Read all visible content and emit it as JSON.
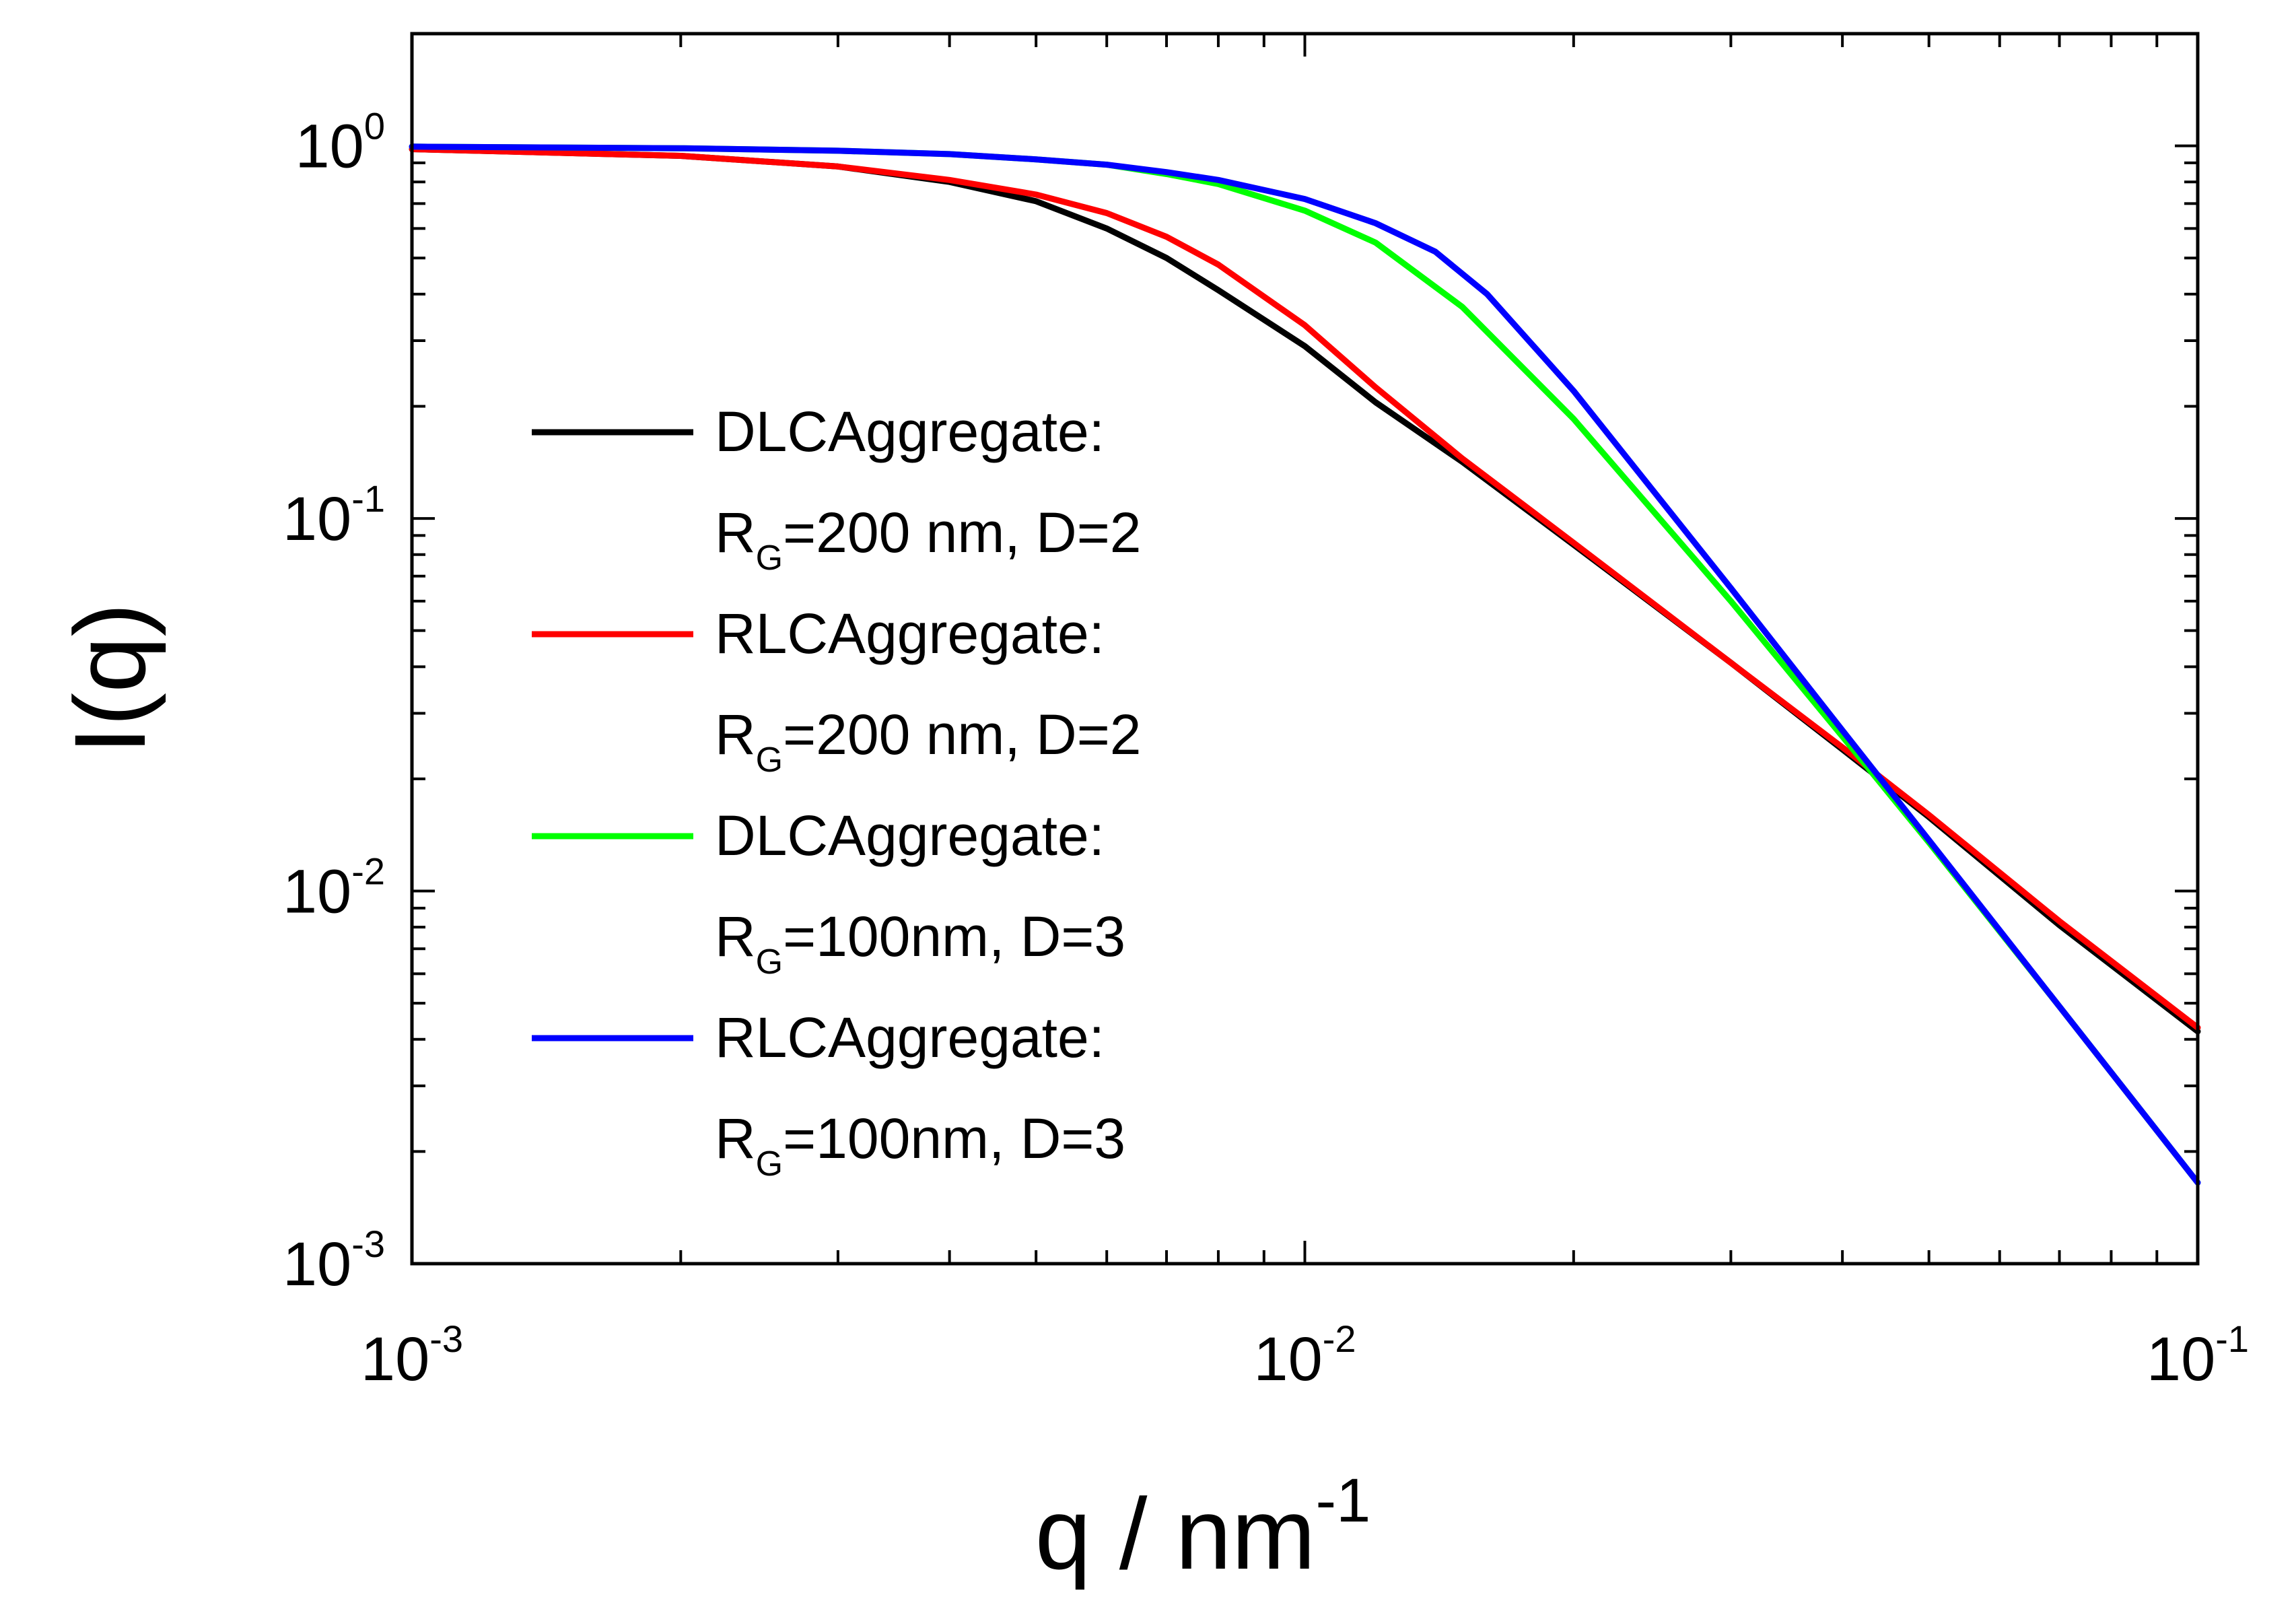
{
  "chart_data": {
    "type": "line",
    "xlabel": "q / nm",
    "xlabel_exponent": "-1",
    "ylabel": "I(q)",
    "xscale": "log",
    "yscale": "log",
    "xlim": [
      0.001,
      0.1
    ],
    "ylim": [
      0.001,
      2.0
    ],
    "x_ticks": [
      {
        "value": 0.001,
        "base": "10",
        "exp": "-3"
      },
      {
        "value": 0.01,
        "base": "10",
        "exp": "-2"
      },
      {
        "value": 0.1,
        "base": "10",
        "exp": "-1"
      }
    ],
    "y_ticks": [
      {
        "value": 0.001,
        "base": "10",
        "exp": "-3"
      },
      {
        "value": 0.01,
        "base": "10",
        "exp": "-2"
      },
      {
        "value": 0.1,
        "base": "10",
        "exp": "-1"
      },
      {
        "value": 1,
        "base": "10",
        "exp": "0"
      }
    ],
    "legend_position": "center-left",
    "series": [
      {
        "name": "DLCAggregate:",
        "params_prefix": "R",
        "params_sub": "G",
        "params_rest": "=200 nm, D=2",
        "color": "#000000",
        "points": [
          [
            0.001,
            0.98
          ],
          [
            0.002,
            0.94
          ],
          [
            0.003,
            0.88
          ],
          [
            0.004,
            0.8
          ],
          [
            0.005,
            0.71
          ],
          [
            0.006,
            0.6
          ],
          [
            0.007,
            0.5
          ],
          [
            0.008,
            0.41
          ],
          [
            0.01,
            0.29
          ],
          [
            0.012,
            0.205
          ],
          [
            0.015,
            0.142
          ],
          [
            0.02,
            0.085
          ],
          [
            0.03,
            0.041
          ],
          [
            0.04,
            0.024
          ],
          [
            0.05,
            0.0158
          ],
          [
            0.07,
            0.0081
          ],
          [
            0.1,
            0.0042
          ]
        ]
      },
      {
        "name": "RLCAggregate:",
        "params_prefix": "R",
        "params_sub": "G",
        "params_rest": "=200 nm, D=2",
        "color": "#ff0000",
        "points": [
          [
            0.001,
            0.98
          ],
          [
            0.002,
            0.94
          ],
          [
            0.003,
            0.88
          ],
          [
            0.004,
            0.81
          ],
          [
            0.005,
            0.74
          ],
          [
            0.006,
            0.66
          ],
          [
            0.007,
            0.57
          ],
          [
            0.008,
            0.48
          ],
          [
            0.01,
            0.33
          ],
          [
            0.012,
            0.225
          ],
          [
            0.015,
            0.145
          ],
          [
            0.02,
            0.086
          ],
          [
            0.03,
            0.041
          ],
          [
            0.04,
            0.0243
          ],
          [
            0.05,
            0.016
          ],
          [
            0.07,
            0.0083
          ],
          [
            0.1,
            0.0043
          ]
        ]
      },
      {
        "name": "DLCAggregate:",
        "params_prefix": "R",
        "params_sub": "G",
        "params_rest": "=100nm, D=3",
        "color": "#00ff00",
        "points": [
          [
            0.001,
            0.995
          ],
          [
            0.002,
            0.985
          ],
          [
            0.003,
            0.97
          ],
          [
            0.004,
            0.95
          ],
          [
            0.005,
            0.92
          ],
          [
            0.006,
            0.89
          ],
          [
            0.007,
            0.84
          ],
          [
            0.008,
            0.79
          ],
          [
            0.01,
            0.67
          ],
          [
            0.012,
            0.55
          ],
          [
            0.015,
            0.37
          ],
          [
            0.02,
            0.185
          ],
          [
            0.03,
            0.06
          ],
          [
            0.04,
            0.026
          ],
          [
            0.05,
            0.0135
          ],
          [
            0.07,
            0.0049
          ],
          [
            0.1,
            0.00165
          ]
        ]
      },
      {
        "name": "RLCAggregate:",
        "params_prefix": "R",
        "params_sub": "G",
        "params_rest": "=100nm, D=3",
        "color": "#0000ff",
        "points": [
          [
            0.001,
            0.995
          ],
          [
            0.002,
            0.985
          ],
          [
            0.003,
            0.97
          ],
          [
            0.004,
            0.95
          ],
          [
            0.005,
            0.92
          ],
          [
            0.006,
            0.89
          ],
          [
            0.007,
            0.85
          ],
          [
            0.008,
            0.81
          ],
          [
            0.01,
            0.72
          ],
          [
            0.012,
            0.62
          ],
          [
            0.014,
            0.52
          ],
          [
            0.016,
            0.4
          ],
          [
            0.02,
            0.22
          ],
          [
            0.03,
            0.065
          ],
          [
            0.04,
            0.027
          ],
          [
            0.05,
            0.0137
          ],
          [
            0.07,
            0.0049
          ],
          [
            0.1,
            0.00165
          ]
        ]
      }
    ]
  }
}
